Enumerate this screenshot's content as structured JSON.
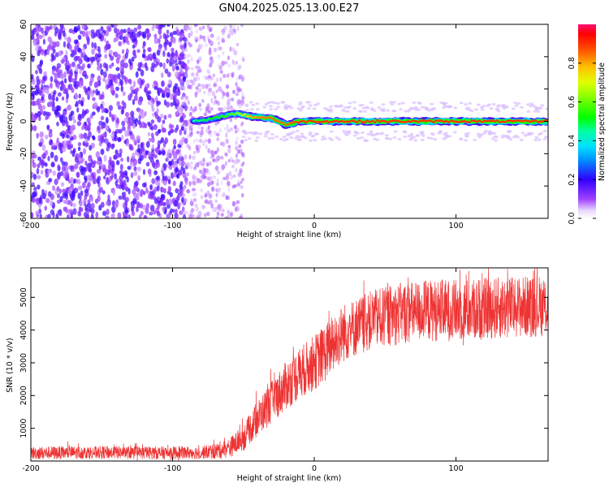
{
  "title": "GN04.2025.025.13.00.E27",
  "colorbar": {
    "label": "Normalized spectral amplitude",
    "ticks": [
      "0.0",
      "0.2",
      "0.4",
      "0.6",
      "0.8"
    ],
    "tick_values": [
      0.0,
      0.2,
      0.4,
      0.6,
      0.8
    ],
    "range": [
      0,
      1
    ]
  },
  "colors": {
    "snr_line": "#ee3333",
    "axis": "#000000"
  },
  "chart_data": [
    {
      "type": "heatmap",
      "name": "spectrogram",
      "xlabel": "Height of straight line (km)",
      "ylabel": "Frequency (Hz)",
      "xlim": [
        -200,
        165
      ],
      "ylim": [
        -60,
        60
      ],
      "xticks": [
        -200,
        -100,
        0,
        100
      ],
      "yticks": [
        -60,
        -40,
        -20,
        0,
        20,
        40,
        60
      ],
      "regions": [
        {
          "x_range": [
            -200,
            -90
          ],
          "description": "dense broadband noise, amplitude ~0.1-0.2"
        },
        {
          "x_range": [
            -90,
            -50
          ],
          "description": "fading noise, amplitude ~0.05"
        },
        {
          "x_range": [
            -90,
            165
          ],
          "description": "narrowband signal near 0 Hz, amplitude rising to ~0.9"
        }
      ],
      "signal_track": [
        {
          "x": -85,
          "freq": 0.0,
          "amp": 0.45
        },
        {
          "x": -75,
          "freq": 1.0,
          "amp": 0.5
        },
        {
          "x": -65,
          "freq": 3.0,
          "amp": 0.55
        },
        {
          "x": -55,
          "freq": 5.0,
          "amp": 0.6
        },
        {
          "x": -45,
          "freq": 3.0,
          "amp": 0.8
        },
        {
          "x": -30,
          "freq": 2.0,
          "amp": 0.85
        },
        {
          "x": -20,
          "freq": -2.0,
          "amp": 0.85
        },
        {
          "x": -10,
          "freq": 0.0,
          "amp": 0.9
        },
        {
          "x": 0,
          "freq": 0.0,
          "amp": 0.9
        },
        {
          "x": 50,
          "freq": 0.0,
          "amp": 0.9
        },
        {
          "x": 100,
          "freq": 0.0,
          "amp": 0.9
        },
        {
          "x": 165,
          "freq": 0.0,
          "amp": 0.9
        }
      ]
    },
    {
      "type": "line",
      "name": "snr",
      "xlabel": "Height of straight line (km)",
      "ylabel": "SNR (10 * v/v)",
      "xlim": [
        -200,
        165
      ],
      "ylim": [
        0,
        5900
      ],
      "xticks": [
        -200,
        -100,
        0,
        100
      ],
      "yticks": [
        1000,
        2000,
        3000,
        4000,
        5000
      ],
      "series": [
        {
          "x": [
            -200,
            -180,
            -160,
            -140,
            -120,
            -100,
            -80,
            -70,
            -60,
            -50,
            -40,
            -30,
            -20,
            -10,
            0,
            10,
            20,
            30,
            40,
            60,
            80,
            100,
            120,
            140,
            165
          ],
          "y": [
            250,
            250,
            260,
            260,
            250,
            250,
            260,
            300,
            400,
            700,
            1300,
            1800,
            2300,
            2700,
            3000,
            3400,
            3900,
            4100,
            4300,
            4500,
            4600,
            4600,
            4650,
            4700,
            4750
          ],
          "noise_band": [
            200,
            200,
            200,
            200,
            200,
            200,
            200,
            250,
            300,
            400,
            550,
            650,
            750,
            800,
            850,
            900,
            900,
            900,
            900,
            950,
            950,
            950,
            950,
            950,
            950
          ]
        }
      ]
    }
  ]
}
